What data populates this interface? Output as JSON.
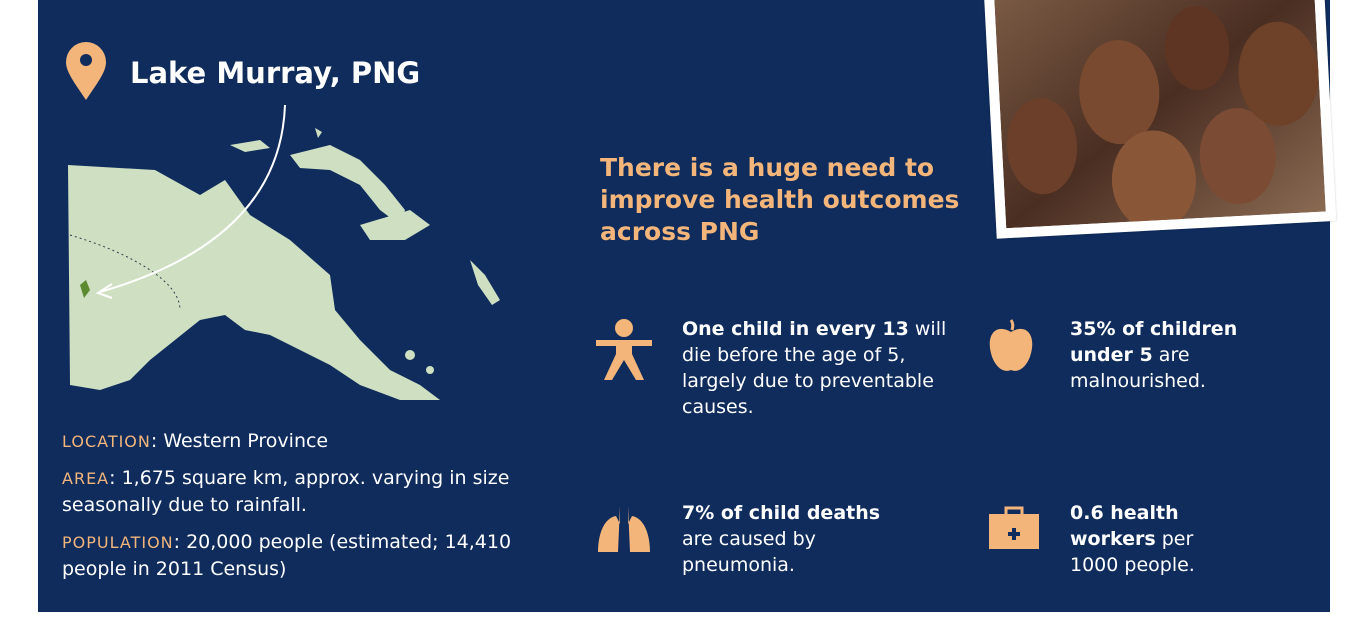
{
  "location": {
    "title": "Lake Murray, PNG"
  },
  "facts": [
    {
      "label": "LOCATION",
      "text": ": Western Province"
    },
    {
      "label": "AREA",
      "text": ": 1,675 square km, approx. varying in size seasonally due to rainfall."
    },
    {
      "label": "POPULATION",
      "text": ": 20,000 people (estimated; 14,410 people in 2011 Census)"
    }
  ],
  "headline": "There is a huge need to improve health outcomes across PNG",
  "stats": [
    {
      "bold": "One child in every 13",
      "text": "will die before the age of 5, largely due to preventable causes."
    },
    {
      "bold": "35% of children under 5",
      "text": "are malnourished."
    },
    {
      "bold": "7% of child deaths",
      "text": "are caused by pneumonia."
    },
    {
      "bold": "0.6 health workers",
      "text": "per 1000 people."
    }
  ]
}
